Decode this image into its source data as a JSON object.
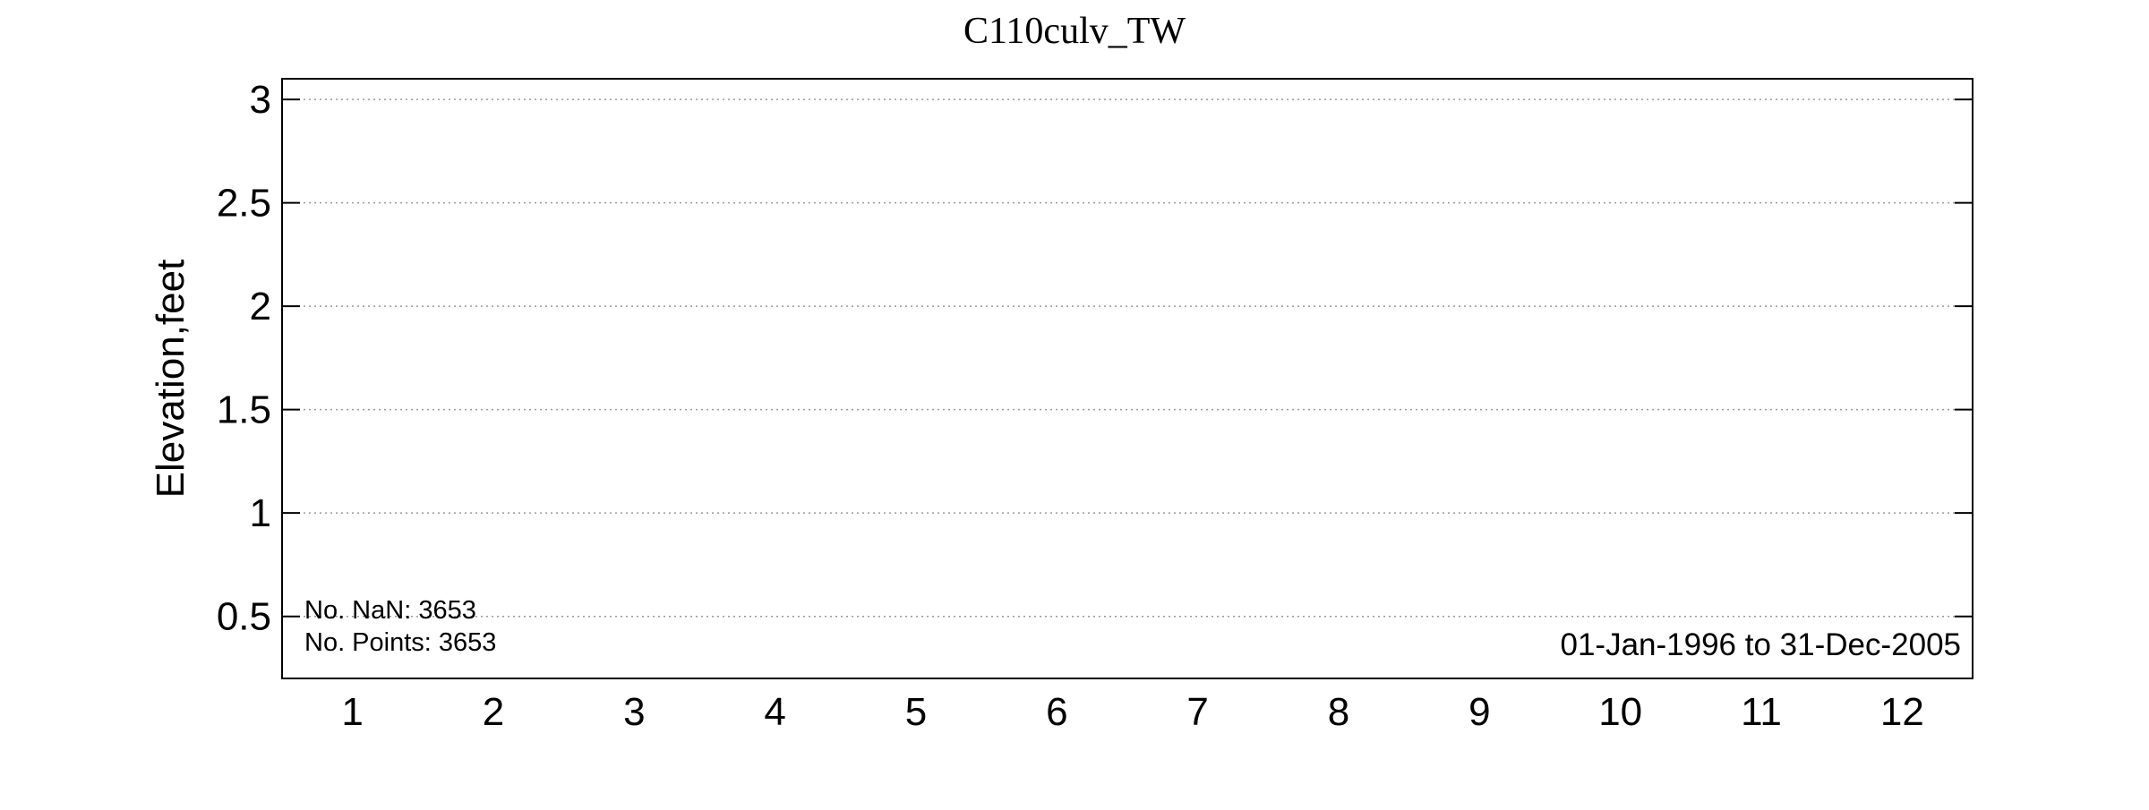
{
  "chart_data": {
    "type": "line",
    "title": "C110culv_TW",
    "xlabel": "",
    "ylabel": "Elevation,feet",
    "x_ticks": [
      "1",
      "2",
      "3",
      "4",
      "5",
      "6",
      "7",
      "8",
      "9",
      "10",
      "11",
      "12"
    ],
    "xlim": [
      0.5,
      12.5
    ],
    "y_ticks": [
      "0.5",
      "1",
      "1.5",
      "2",
      "2.5",
      "3"
    ],
    "y_tick_values": [
      0.5,
      1,
      1.5,
      2,
      2.5,
      3
    ],
    "ylim": [
      0.2,
      3.1
    ],
    "grid": "horizontal-dotted",
    "series": [],
    "annotations": {
      "nan_count": "No. NaN: 3653",
      "point_count": "No. Points: 3653",
      "date_range": "01-Jan-1996 to 31-Dec-2005"
    }
  }
}
